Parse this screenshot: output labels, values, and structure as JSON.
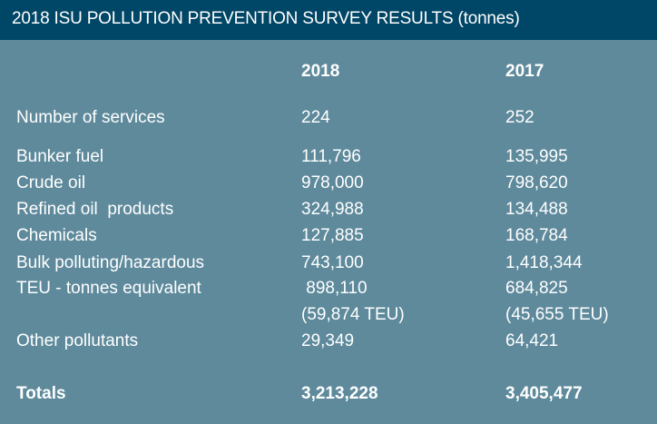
{
  "title": "2018 ISU POLLUTION PREVENTION SURVEY RESULTS (tonnes)",
  "headers": [
    "2018",
    "2017"
  ],
  "services": {
    "label": "Number of services",
    "v2018": "224",
    "v2017": "252"
  },
  "rows": [
    {
      "label": "Bunker fuel",
      "v2018": "111,796",
      "v2017": "135,995"
    },
    {
      "label": "Crude oil",
      "v2018": "978,000",
      "v2017": "798,620"
    },
    {
      "label": "Refined oil  products",
      "v2018": "324,988",
      "v2017": "134,488"
    },
    {
      "label": "Chemicals",
      "v2018": "127,885",
      "v2017": "168,784"
    },
    {
      "label": "Bulk polluting/hazardous",
      "v2018": "743,100",
      "v2017": "1,418,344"
    },
    {
      "label": "TEU - tonnes equivalent",
      "v2018": " 898,110",
      "v2017": "684,825"
    },
    {
      "label": "Other pollutants",
      "v2018": "29,349",
      "v2017": "64,421"
    }
  ],
  "teu_note": {
    "v2018": "(59,874 TEU)",
    "v2017": "(45,655 TEU)"
  },
  "totals": {
    "label": "Totals",
    "v2018": "3,213,228",
    "v2017": "3,405,477"
  }
}
